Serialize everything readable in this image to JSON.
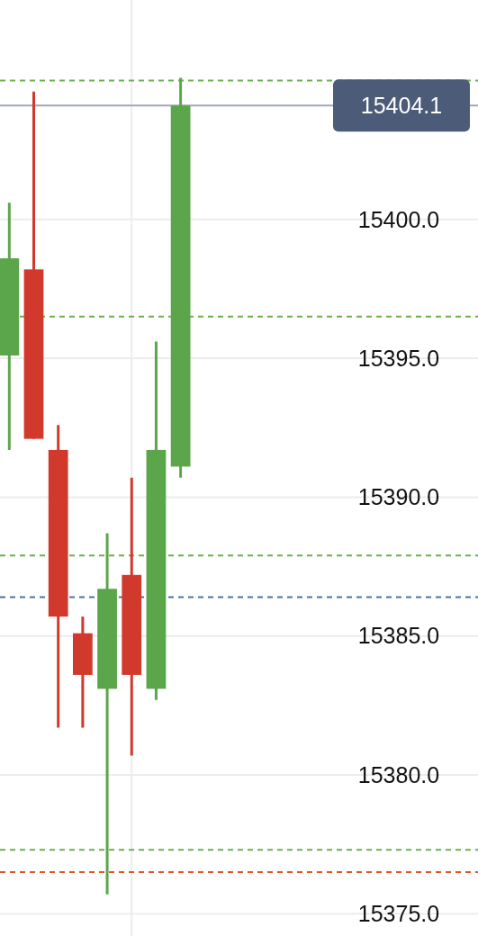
{
  "chart_data": {
    "type": "candlestick",
    "categories": [
      null,
      null,
      null,
      null,
      null,
      null,
      null,
      null,
      null,
      null,
      null,
      null,
      null,
      null,
      null,
      null,
      null,
      null,
      null
    ],
    "ohlc": [
      [
        15395.1,
        15400.6,
        15391.7,
        15398.6
      ],
      [
        15398.2,
        15404.6,
        15392.1,
        15392.1
      ],
      [
        15391.7,
        15392.6,
        15381.7,
        15385.7
      ],
      [
        15385.1,
        15385.7,
        15381.7,
        15383.6
      ],
      [
        15383.1,
        15388.7,
        15375.7,
        15386.7
      ],
      [
        15387.2,
        15390.7,
        15380.7,
        15383.6
      ],
      [
        15383.1,
        15395.6,
        15382.7,
        15391.7
      ],
      [
        15391.1,
        15405.1,
        15390.7,
        15404.1
      ],
      null,
      null,
      null,
      null,
      null,
      null,
      null,
      null,
      null,
      null,
      null
    ],
    "colors": [
      "#5ba64b",
      "#d2392d",
      "#d2392d",
      "#d2392d",
      "#5ba64b",
      "#d2392d",
      "#5ba64b",
      "#5ba64b",
      null,
      null,
      null,
      null,
      null,
      null,
      null,
      null,
      null,
      null,
      null
    ],
    "ylim": [
      15374.2,
      15407.9
    ],
    "yticks": [
      {
        "value": 15375,
        "label": "15375.0"
      },
      {
        "value": 15380,
        "label": "15380.0"
      },
      {
        "value": 15385,
        "label": "15385.0"
      },
      {
        "value": 15390,
        "label": "15390.0"
      },
      {
        "value": 15395,
        "label": "15395.0"
      },
      {
        "value": 15400,
        "label": "15400.0"
      }
    ],
    "tick_labels": "y",
    "grid": "y",
    "ref_lines": [
      {
        "axis": "y",
        "value": 15405.0,
        "color": "#6ab04c",
        "line_style": "dashed"
      },
      {
        "axis": "y",
        "value": 15396.5,
        "color": "#6ab04c",
        "line_style": "dashed"
      },
      {
        "axis": "y",
        "value": 15387.9,
        "color": "#6ab04c",
        "line_style": "dashed"
      },
      {
        "axis": "y",
        "value": 15377.3,
        "color": "#6ab04c",
        "line_style": "dashed"
      },
      {
        "axis": "y",
        "value": 15376.5,
        "color": "#e0562a",
        "line_style": "dashed"
      },
      {
        "axis": "y",
        "value": 15386.4,
        "color": "#4a72a8",
        "line_style": "dashed"
      },
      {
        "axis": "y",
        "value": 15404.1,
        "label": "15404.1",
        "color": "#a0a6b8",
        "line_style": "solid"
      }
    ]
  }
}
